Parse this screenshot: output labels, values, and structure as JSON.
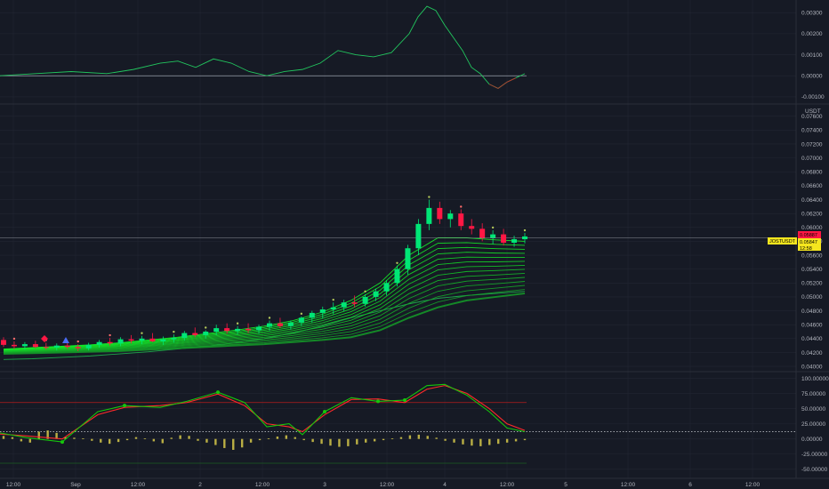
{
  "symbol_label": "JOSTUSDT",
  "price_label": "0.05847",
  "countdown": "12:58",
  "prev_close_label": "0.05887",
  "currency": "USDT",
  "colors": {
    "background": "#161a25",
    "grid": "#222633",
    "text": "#b2b5be",
    "bull": "#00e676",
    "bear": "#ff1744",
    "ribbon": "#22c55e",
    "osc_line": "#22c55e",
    "stoch_k": "#16c60c",
    "stoch_d": "#ff2a2a",
    "histogram": "#d6c94a",
    "price_tag": "#f5e61e"
  },
  "chart_data": [
    {
      "type": "line",
      "panel": "top-oscillator",
      "y_ticks": [
        "0.00300",
        "0.00200",
        "0.00100",
        "0.00000",
        "-0.00100"
      ],
      "ylim": [
        -0.0013,
        0.0036
      ],
      "x": [
        0,
        40,
        80,
        120,
        150,
        180,
        200,
        220,
        240,
        260,
        280,
        300,
        320,
        340,
        360,
        380,
        400,
        420,
        440,
        460,
        470,
        480,
        490,
        500,
        510,
        520,
        530,
        540,
        550,
        560,
        570,
        580,
        590
      ],
      "values": [
        0.0,
        0.0001,
        0.0002,
        0.0001,
        0.0003,
        0.0006,
        0.0007,
        0.0004,
        0.0008,
        0.0006,
        0.0002,
        0.0,
        0.0002,
        0.0003,
        0.0006,
        0.0012,
        0.001,
        0.0009,
        0.0011,
        0.002,
        0.0028,
        0.0033,
        0.0031,
        0.0024,
        0.0018,
        0.0012,
        0.0004,
        0.0001,
        -0.0004,
        -0.0006,
        -0.0003,
        -0.0001,
        0.0001
      ],
      "baseline": 0.0
    },
    {
      "type": "candlestick",
      "panel": "price",
      "y_ticks": [
        "0.07600",
        "0.07400",
        "0.07200",
        "0.07000",
        "0.06800",
        "0.06600",
        "0.06400",
        "0.06200",
        "0.06000",
        "0.05800",
        "0.05600",
        "0.05400",
        "0.05200",
        "0.05000",
        "0.04800",
        "0.04600",
        "0.04400",
        "0.04200",
        "0.04000"
      ],
      "ylim": [
        0.0395,
        0.0775
      ],
      "ohlc": [
        [
          0.0438,
          0.0442,
          0.0428,
          0.0431
        ],
        [
          0.0431,
          0.0436,
          0.0425,
          0.0429
        ],
        [
          0.0429,
          0.0435,
          0.0424,
          0.0432
        ],
        [
          0.0432,
          0.0437,
          0.0426,
          0.0428
        ],
        [
          0.0428,
          0.0434,
          0.0424,
          0.0427
        ],
        [
          0.0427,
          0.0433,
          0.0423,
          0.043
        ],
        [
          0.043,
          0.0436,
          0.0425,
          0.0428
        ],
        [
          0.0428,
          0.0432,
          0.0422,
          0.0426
        ],
        [
          0.0426,
          0.0434,
          0.0423,
          0.0431
        ],
        [
          0.0431,
          0.0438,
          0.0427,
          0.0435
        ],
        [
          0.0435,
          0.0441,
          0.043,
          0.0433
        ],
        [
          0.0433,
          0.0442,
          0.0429,
          0.0439
        ],
        [
          0.0439,
          0.0445,
          0.0433,
          0.0437
        ],
        [
          0.0437,
          0.0444,
          0.0432,
          0.044
        ],
        [
          0.044,
          0.0448,
          0.0435,
          0.0436
        ],
        [
          0.0436,
          0.0443,
          0.0431,
          0.0439
        ],
        [
          0.0439,
          0.0446,
          0.0434,
          0.0441
        ],
        [
          0.0441,
          0.0451,
          0.0437,
          0.0448
        ],
        [
          0.0448,
          0.0456,
          0.0442,
          0.0445
        ],
        [
          0.0445,
          0.0452,
          0.044,
          0.045
        ],
        [
          0.045,
          0.046,
          0.0445,
          0.0455
        ],
        [
          0.0455,
          0.0462,
          0.0447,
          0.0451
        ],
        [
          0.0451,
          0.0458,
          0.0446,
          0.0454
        ],
        [
          0.0454,
          0.0462,
          0.0448,
          0.0452
        ],
        [
          0.0452,
          0.046,
          0.0447,
          0.0457
        ],
        [
          0.0457,
          0.0466,
          0.0451,
          0.0462
        ],
        [
          0.0462,
          0.047,
          0.0455,
          0.0458
        ],
        [
          0.0458,
          0.0466,
          0.0453,
          0.0463
        ],
        [
          0.0463,
          0.0472,
          0.0458,
          0.047
        ],
        [
          0.047,
          0.048,
          0.0463,
          0.0477
        ],
        [
          0.0477,
          0.0486,
          0.0469,
          0.0482
        ],
        [
          0.0482,
          0.0492,
          0.0475,
          0.0485
        ],
        [
          0.0485,
          0.0496,
          0.0479,
          0.0492
        ],
        [
          0.0492,
          0.0502,
          0.0485,
          0.049
        ],
        [
          0.049,
          0.0504,
          0.0486,
          0.05
        ],
        [
          0.05,
          0.0512,
          0.0494,
          0.0508
        ],
        [
          0.0508,
          0.0524,
          0.0502,
          0.052
        ],
        [
          0.052,
          0.0545,
          0.0515,
          0.054
        ],
        [
          0.054,
          0.0575,
          0.0532,
          0.057
        ],
        [
          0.057,
          0.0612,
          0.056,
          0.0605
        ],
        [
          0.0605,
          0.064,
          0.0596,
          0.0628
        ],
        [
          0.0628,
          0.0637,
          0.0605,
          0.0612
        ],
        [
          0.0612,
          0.0625,
          0.06,
          0.062
        ],
        [
          0.062,
          0.0626,
          0.0596,
          0.0602
        ],
        [
          0.0602,
          0.0612,
          0.059,
          0.0598
        ],
        [
          0.0598,
          0.0606,
          0.058,
          0.0585
        ],
        [
          0.0585,
          0.0596,
          0.0576,
          0.059
        ],
        [
          0.059,
          0.0598,
          0.0574,
          0.0578
        ],
        [
          0.0578,
          0.0588,
          0.0572,
          0.0583
        ],
        [
          0.0583,
          0.0592,
          0.0577,
          0.0587
        ]
      ],
      "ribbon_fast": [
        0.0425,
        0.0427,
        0.0429,
        0.0431,
        0.0434,
        0.0438,
        0.0442,
        0.0447,
        0.0452,
        0.0458,
        0.0466,
        0.0478,
        0.0495,
        0.052,
        0.056,
        0.0585,
        0.0585,
        0.0582,
        0.058
      ],
      "ribbon_slow": [
        0.0418,
        0.0419,
        0.042,
        0.0421,
        0.0422,
        0.0424,
        0.0426,
        0.0428,
        0.043,
        0.0432,
        0.0435,
        0.0438,
        0.0442,
        0.0452,
        0.047,
        0.0485,
        0.0495,
        0.05,
        0.0505
      ],
      "support_line": [
        0.041,
        0.0411,
        0.0413,
        0.0415,
        0.0418,
        0.0421,
        0.0425,
        0.0429,
        0.0434,
        0.044,
        0.0448,
        0.0458,
        0.047,
        0.048,
        0.049,
        0.0498,
        0.0502,
        0.0505,
        0.0508
      ],
      "last_price": 0.05847
    },
    {
      "type": "line",
      "panel": "stochastic",
      "y_ticks": [
        "100.00000",
        "75.00000",
        "50.00000",
        "25.00000",
        "0.00000",
        "-25.00000",
        "-50.00000"
      ],
      "ylim": [
        -62,
        108
      ],
      "x": [
        0,
        30,
        70,
        110,
        140,
        180,
        210,
        245,
        275,
        300,
        325,
        340,
        365,
        395,
        425,
        455,
        480,
        500,
        525,
        550,
        570,
        590
      ],
      "k_values": [
        10,
        2,
        -5,
        45,
        55,
        52,
        62,
        77,
        60,
        20,
        25,
        7,
        45,
        68,
        62,
        64,
        88,
        90,
        72,
        45,
        18,
        12
      ],
      "d_values": [
        8,
        5,
        0,
        40,
        52,
        55,
        60,
        74,
        55,
        25,
        20,
        12,
        40,
        65,
        66,
        60,
        82,
        88,
        75,
        50,
        25,
        14
      ],
      "hist_values": [
        5,
        3,
        -4,
        -6,
        12,
        14,
        10,
        3,
        2,
        1,
        -3,
        -6,
        -8,
        -5,
        -2,
        3,
        1,
        -4,
        -7,
        2,
        6,
        5,
        -3,
        -6,
        -10,
        -15,
        -18,
        -14,
        -6,
        -2,
        1,
        4,
        6,
        3,
        -2,
        -5,
        -8,
        -11,
        -13,
        -12,
        -9,
        -6,
        -4,
        -2,
        1,
        3,
        6,
        7,
        5,
        2,
        -3,
        -6,
        -9,
        -11,
        -12,
        -10,
        -8,
        -6,
        -4,
        -2
      ],
      "levels": [
        60,
        -40
      ],
      "ref_level": 12
    }
  ],
  "x_axis_ticks": [
    "12:00",
    "Sep",
    "12:00",
    "2",
    "12:00",
    "3",
    "12:00",
    "4",
    "12:00",
    "5",
    "12:00",
    "6",
    "12:00"
  ]
}
